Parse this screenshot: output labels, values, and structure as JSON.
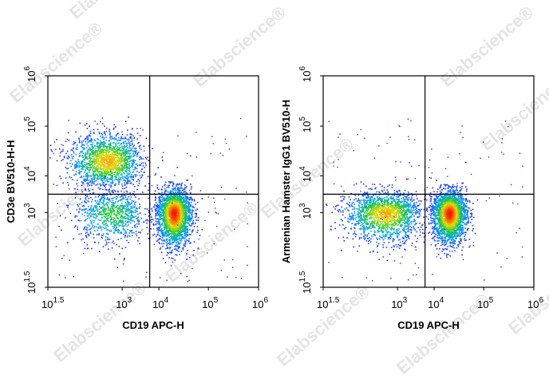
{
  "watermark": {
    "text": "Elabscience",
    "symbol": "®"
  },
  "colors": {
    "low": "#1f1fff",
    "mid": "#22c840",
    "high": "#ff2000",
    "gate": "#000000"
  },
  "chart_data": [
    {
      "type": "scatter",
      "subtype": "flow-cytometry-density-plot",
      "xlabel": "CD19 APC-H",
      "ylabel": "CD3e BV510-H-H",
      "scale": "log10",
      "xlim": [
        1.5,
        6
      ],
      "ylim": [
        1.5,
        6
      ],
      "x_ticks": [
        {
          "base": "10",
          "exp": "1.5"
        },
        {
          "base": "10",
          "exp": "3"
        },
        {
          "base": "10",
          "exp": "4"
        },
        {
          "base": "10",
          "exp": "5"
        },
        {
          "base": "10",
          "exp": "6"
        }
      ],
      "y_ticks": [
        {
          "base": "10",
          "exp": "1.5"
        },
        {
          "base": "10",
          "exp": "3"
        },
        {
          "base": "10",
          "exp": "4"
        },
        {
          "base": "10",
          "exp": "5"
        },
        {
          "base": "10",
          "exp": "6"
        }
      ],
      "quadrant_gate": {
        "x": 3.75,
        "y": 3.5
      },
      "populations": [
        {
          "name": "",
          "x_center": 2.7,
          "y_center": 4.3,
          "x_spread": 0.38,
          "y_spread": 0.27,
          "relative_density": "high"
        },
        {
          "name": "",
          "x_center": 4.3,
          "y_center": 3.0,
          "x_spread": 0.17,
          "y_spread": 0.33,
          "relative_density": "highest"
        },
        {
          "name": "",
          "x_center": 2.8,
          "y_center": 3.0,
          "x_spread": 0.38,
          "y_spread": 0.3,
          "relative_density": "low"
        }
      ]
    },
    {
      "type": "scatter",
      "subtype": "flow-cytometry-density-plot",
      "xlabel": "CD19 APC-H",
      "ylabel": "Armenian Hamster IgG1 BV510-H",
      "scale": "log10",
      "xlim": [
        1.5,
        6
      ],
      "ylim": [
        1.5,
        6
      ],
      "x_ticks": [
        {
          "base": "10",
          "exp": "1.5"
        },
        {
          "base": "10",
          "exp": "3"
        },
        {
          "base": "10",
          "exp": "4"
        },
        {
          "base": "10",
          "exp": "5"
        },
        {
          "base": "10",
          "exp": "6"
        }
      ],
      "y_ticks": [
        {
          "base": "10",
          "exp": "1.5"
        },
        {
          "base": "10",
          "exp": "3"
        },
        {
          "base": "10",
          "exp": "4"
        },
        {
          "base": "10",
          "exp": "5"
        },
        {
          "base": "10",
          "exp": "6"
        }
      ],
      "quadrant_gate": {
        "x": 3.75,
        "y": 3.5
      },
      "populations": [
        {
          "name": "",
          "x_center": 2.75,
          "y_center": 3.0,
          "x_spread": 0.4,
          "y_spread": 0.28,
          "relative_density": "high"
        },
        {
          "name": "",
          "x_center": 4.3,
          "y_center": 3.0,
          "x_spread": 0.17,
          "y_spread": 0.3,
          "relative_density": "highest"
        }
      ]
    }
  ]
}
